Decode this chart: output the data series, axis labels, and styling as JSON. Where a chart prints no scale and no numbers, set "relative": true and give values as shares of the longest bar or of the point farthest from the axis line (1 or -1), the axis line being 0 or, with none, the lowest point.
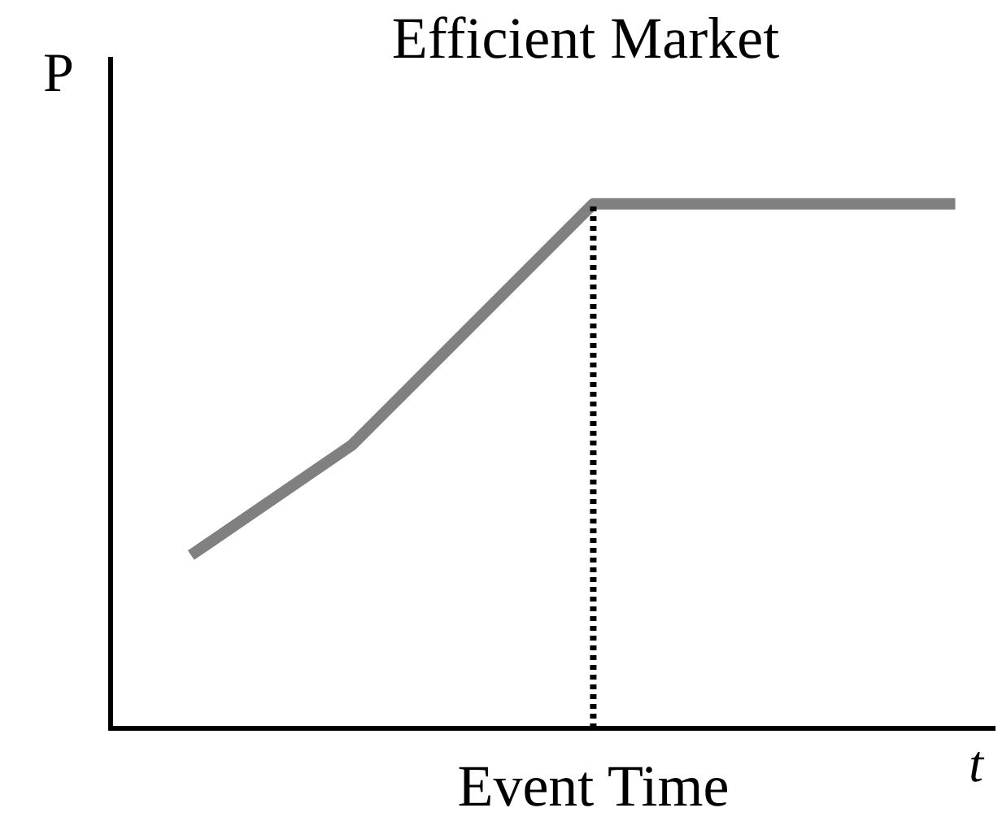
{
  "chart_data": {
    "type": "line",
    "title": "Efficient Market",
    "xlabel": "t",
    "ylabel": "P",
    "relative": true,
    "legend": false,
    "marker": "none",
    "categories": [
      null,
      null,
      null,
      null,
      null,
      null,
      null,
      null,
      null,
      null,
      null,
      null,
      null,
      null,
      null,
      null,
      null,
      null,
      null,
      null,
      null,
      null,
      null
    ],
    "series": [
      {
        "color": "#808080",
        "values": [
          null,
          null,
          0.33,
          null,
          null,
          null,
          0.54,
          null,
          null,
          null,
          null,
          null,
          1,
          null,
          null,
          null,
          null,
          null,
          null,
          null,
          null,
          1,
          null
        ]
      }
    ],
    "annotations": [
      "Event Time"
    ]
  }
}
